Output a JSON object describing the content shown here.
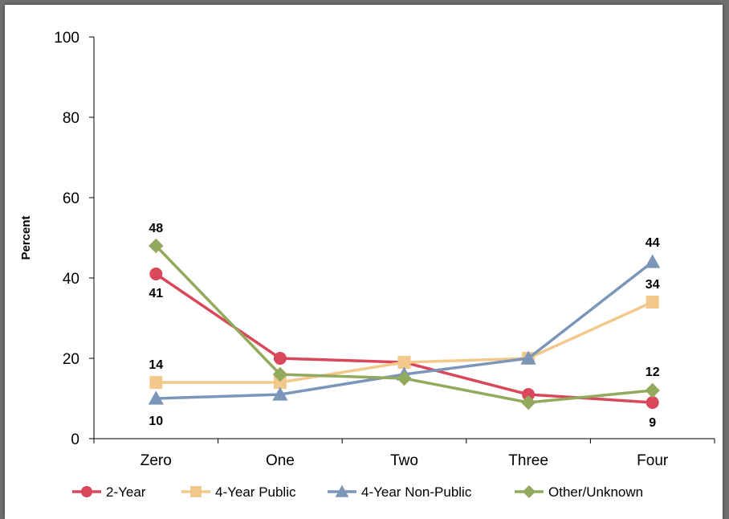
{
  "chart_data": {
    "type": "line",
    "categories": [
      "Zero",
      "One",
      "Two",
      "Three",
      "Four"
    ],
    "ylabel": "Percent",
    "ylim": [
      0,
      100
    ],
    "yticks": [
      0,
      20,
      40,
      60,
      80,
      100
    ],
    "grid": false,
    "legend_position": "bottom",
    "series": [
      {
        "name": "2-Year",
        "values": [
          41,
          20,
          19,
          11,
          9
        ],
        "color": "#d9475a",
        "marker": "circle"
      },
      {
        "name": "4-Year Public",
        "values": [
          14,
          14,
          19,
          20,
          34
        ],
        "color": "#f2c98a",
        "marker": "square"
      },
      {
        "name": "4-Year Non-Public",
        "values": [
          10,
          11,
          16,
          20,
          44
        ],
        "color": "#7b96b8",
        "marker": "triangle"
      },
      {
        "name": "Other/Unknown",
        "values": [
          48,
          16,
          15,
          9,
          12
        ],
        "color": "#93aa5e",
        "marker": "diamond"
      }
    ],
    "data_labels": [
      {
        "text": "48",
        "series": 3,
        "index": 0
      },
      {
        "text": "41",
        "series": 0,
        "index": 0
      },
      {
        "text": "14",
        "series": 1,
        "index": 0
      },
      {
        "text": "10",
        "series": 2,
        "index": 0
      },
      {
        "text": "44",
        "series": 2,
        "index": 4
      },
      {
        "text": "34",
        "series": 1,
        "index": 4
      },
      {
        "text": "12",
        "series": 3,
        "index": 4
      },
      {
        "text": "9",
        "series": 0,
        "index": 4
      }
    ]
  }
}
